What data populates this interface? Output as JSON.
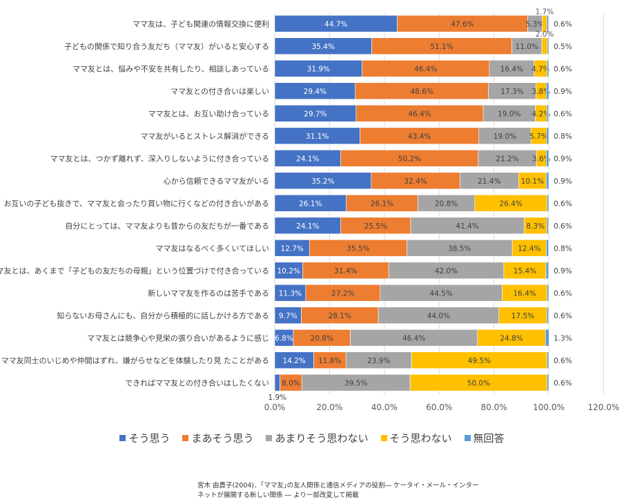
{
  "chart_data": {
    "type": "bar",
    "orientation": "horizontal",
    "stacked": true,
    "categories": [
      "ママ友は、子ども関連の情報交換に便利",
      "子どもの関係で知り合う友だち（ママ友）がいると安心する",
      "ママ友とは、悩みや不安を共有したり、相談しあっている",
      "ママ友との付き合いは楽しい",
      "ママ友とは、お互い助け合っている",
      "ママ友がいるとストレス解消ができる",
      "ママ友とは、つかず離れず、深入りしないように付き合っている",
      "心から信頼できるママ友がいる",
      "お互いの子ども抜きで、ママ友と会ったり買い物に行くなどの付き合いがある",
      "自分にとっては、ママ友よりも昔からの友だちが一番である",
      "ママ友はなるべく多くいてほしい",
      "ママ友とは、あくまで「子どもの友だちの母親」という位置づけで付き合っている",
      "新しいママ友を作るのは苦手である",
      "知らないお母さんにも、自分から積極的に話しかける方である",
      "ママ友とは競争心や見栄の張り合いがあるように感じ",
      "ママ友同士のいじめや仲間はずれ、嫌がらせなどを体験したり見 たことがある",
      "できればママ友との付き合いはしたくない"
    ],
    "series": [
      {
        "name": "そう思う",
        "color": "#4472C4",
        "label_color": "#ffffff",
        "values": [
          44.7,
          35.4,
          31.9,
          29.4,
          29.7,
          31.1,
          24.1,
          35.2,
          26.1,
          24.1,
          12.7,
          10.2,
          11.3,
          9.7,
          6.8,
          14.2,
          1.9
        ]
      },
      {
        "name": "まあそう思う",
        "color": "#ED7D31",
        "label_color": "#404040",
        "values": [
          47.6,
          51.1,
          46.4,
          48.6,
          46.4,
          43.4,
          50.2,
          32.4,
          26.1,
          25.5,
          35.5,
          31.4,
          27.2,
          28.1,
          20.8,
          11.8,
          8.0
        ]
      },
      {
        "name": "あまりそう思わない",
        "color": "#A5A5A5",
        "label_color": "#404040",
        "values": [
          5.3,
          11.0,
          16.4,
          17.3,
          19.0,
          19.0,
          21.2,
          21.4,
          20.8,
          41.4,
          38.5,
          42.0,
          44.5,
          44.0,
          46.4,
          23.9,
          39.5
        ]
      },
      {
        "name": "そう思わない",
        "color": "#FFC000",
        "label_color": "#404040",
        "values": [
          1.7,
          2.0,
          4.7,
          3.8,
          4.2,
          5.7,
          3.6,
          10.1,
          26.4,
          8.3,
          12.4,
          15.4,
          16.4,
          17.5,
          24.8,
          49.5,
          50.0
        ]
      },
      {
        "name": "無回答",
        "color": "#5B9BD5",
        "label_color": "#404040",
        "values": [
          0.6,
          0.5,
          0.6,
          0.9,
          0.6,
          0.8,
          0.9,
          0.9,
          0.6,
          0.6,
          0.8,
          0.9,
          0.6,
          0.6,
          1.3,
          0.6,
          0.6
        ]
      }
    ],
    "xlim": [
      0,
      120
    ],
    "xticks": [
      "0.0%",
      "20.0%",
      "40.0%",
      "60.0%",
      "80.0%",
      "100.0%",
      "120.0%"
    ],
    "grid": true,
    "legend_position": "bottom"
  },
  "source": {
    "line1": "宮木 由貴子(2004)．｢ママ友｣の友人関係と通信メディアの役割― ケータイ・メール・インター",
    "line2": "ネットが展開する新しい関係 ― より一部改変して掲載"
  }
}
